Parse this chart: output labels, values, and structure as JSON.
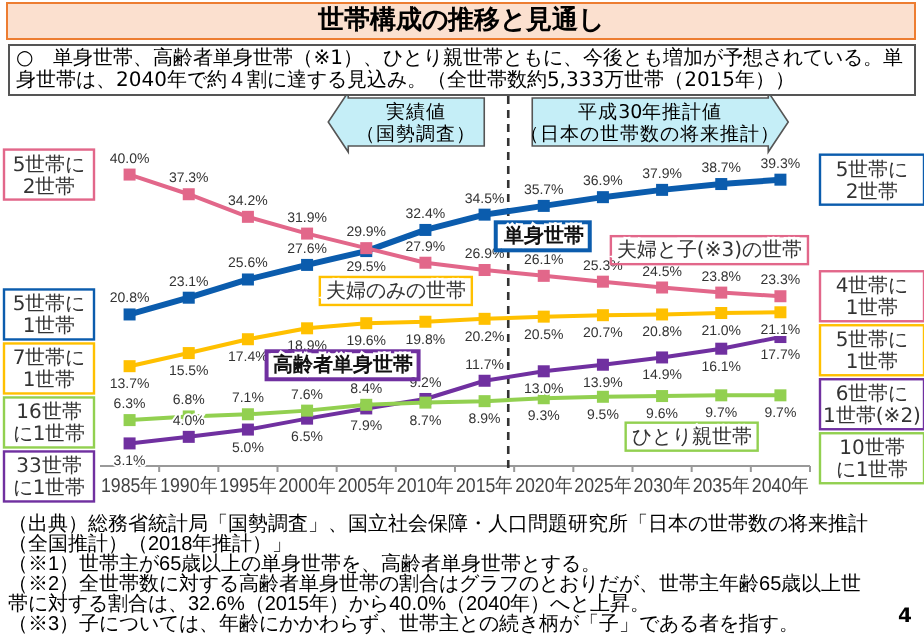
{
  "chart_data": {
    "type": "line",
    "title": "世帯構成の推移と見通し",
    "subtitle": "○　単身世帯、高齢者単身世帯（※1）、ひとり親世帯ともに、今後とも増加が予想されている。単身世帯は、2040年で約４割に達する見込み。（全世帯数約5,333万世帯（2015年））",
    "categories": [
      "1985年",
      "1990年",
      "1995年",
      "2000年",
      "2005年",
      "2010年",
      "2015年",
      "2020年",
      "2025年",
      "2030年",
      "2035年",
      "2040年"
    ],
    "series": [
      {
        "name": "単身世帯",
        "color": "#0b5cad",
        "values": [
          20.8,
          23.1,
          25.6,
          27.6,
          29.5,
          32.4,
          34.5,
          35.7,
          36.9,
          37.9,
          38.7,
          39.3
        ],
        "value_labels": [
          "20.8%",
          "23.1%",
          "25.6%",
          "27.6%",
          "29.5%",
          "32.4%",
          "34.5%",
          "35.7%",
          "36.9%",
          "37.9%",
          "38.7%",
          "39.3%"
        ]
      },
      {
        "name": "夫婦と子(※3)の世帯",
        "color": "#e2678a",
        "values": [
          40.0,
          37.3,
          34.2,
          31.9,
          29.9,
          27.9,
          26.9,
          26.1,
          25.3,
          24.5,
          23.8,
          23.3
        ],
        "value_labels": [
          "40.0%",
          "37.3%",
          "34.2%",
          "31.9%",
          "29.9%",
          "27.9%",
          "26.9%",
          "26.1%",
          "25.3%",
          "24.5%",
          "23.8%",
          "23.3%"
        ]
      },
      {
        "name": "夫婦のみの世帯",
        "color": "#ffc000",
        "values": [
          13.7,
          15.5,
          17.4,
          18.9,
          19.6,
          19.8,
          20.2,
          20.5,
          20.7,
          20.8,
          21.0,
          21.1
        ],
        "value_labels": [
          "13.7%",
          "15.5%",
          "17.4%",
          "18.9%",
          "19.6%",
          "19.8%",
          "20.2%",
          "20.5%",
          "20.7%",
          "20.8%",
          "21.0%",
          "21.1%"
        ]
      },
      {
        "name": "高齢者単身世帯",
        "color": "#7030a0",
        "values": [
          3.1,
          4.0,
          5.0,
          6.5,
          7.9,
          9.2,
          11.7,
          13.0,
          13.9,
          14.9,
          16.1,
          17.7
        ],
        "value_labels": [
          "3.1%",
          "4.0%",
          "5.0%",
          "6.5%",
          "7.9%",
          "9.2%",
          "11.7%",
          "13.0%",
          "13.9%",
          "14.9%",
          "16.1%",
          "17.7%"
        ]
      },
      {
        "name": "ひとり親世帯",
        "color": "#92d050",
        "values": [
          6.3,
          6.8,
          7.1,
          7.6,
          8.4,
          8.7,
          8.9,
          9.3,
          9.5,
          9.6,
          9.7,
          9.7
        ],
        "value_labels": [
          "6.3%",
          "6.8%",
          "7.1%",
          "7.6%",
          "8.4%",
          "8.7%",
          "8.9%",
          "9.3%",
          "9.5%",
          "9.6%",
          "9.7%",
          "9.7%"
        ]
      }
    ],
    "tick_labels": "x",
    "legend": false,
    "marker": "square",
    "line_style": "solid",
    "ref_lines": [
      {
        "axis": "x",
        "value": "2015年",
        "line_style": "dashed",
        "color": "#333333"
      }
    ],
    "annotations": [
      "実績値（国勢調査）",
      "平成30年推計値（日本の世帯数の将来推計）",
      "（出典）総務省統計局「国勢調査」、国立社会保障・人口問題研究所「日本の世帯数の将来推計（全国推計）（2018年推計）」",
      "（※1）世帯主が65歳以上の単身世帯を、高齢者単身世帯とする。",
      "（※2）全世帯数に対する高齢者単身世帯の割合はグラフのとおりだが、世帯主年齢65歳以上世帯に対する割合は、32.6%（2015年）から40.0%（2040年）へと上昇。",
      "（※3）子については、年齢にかかわらず、世帯主との続き柄が「子」である者を指す。",
      "4",
      "5世帯に2世帯",
      "5世帯に1世帯",
      "7世帯に1世帯",
      "16世帯に1世帯",
      "33世帯に1世帯",
      "5世帯に2世帯",
      "4世帯に1世帯",
      "5世帯に1世帯",
      "6世帯に1世帯(※2)",
      "10世帯に1世帯"
    ]
  }
}
